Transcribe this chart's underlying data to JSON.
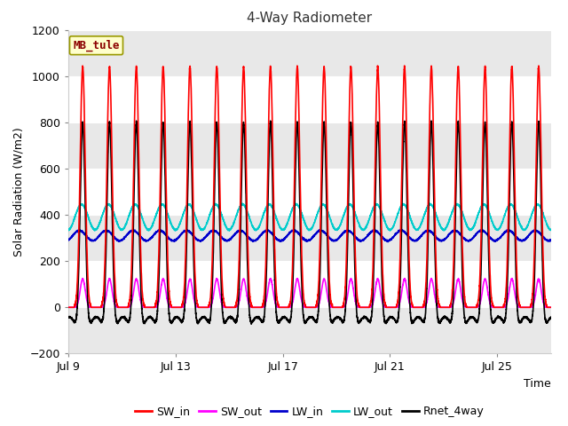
{
  "title": "4-Way Radiometer",
  "xlabel": "Time",
  "ylabel": "Solar Radiation (W/m2)",
  "ylim": [
    -200,
    1200
  ],
  "yticks": [
    -200,
    0,
    200,
    400,
    600,
    800,
    1000,
    1200
  ],
  "xtick_labels": [
    "Jul 9",
    "Jul 13",
    "Jul 17",
    "Jul 21",
    "Jul 25"
  ],
  "xtick_pos": [
    0,
    4,
    8,
    12,
    16
  ],
  "station_label": "MB_tule",
  "fig_bg": "#ffffff",
  "plot_bg": "#ffffff",
  "lines": {
    "SW_in": {
      "color": "#ff0000",
      "lw": 1.2
    },
    "SW_out": {
      "color": "#ff00ff",
      "lw": 1.2
    },
    "LW_in": {
      "color": "#0000cc",
      "lw": 1.2
    },
    "LW_out": {
      "color": "#00cccc",
      "lw": 1.2
    },
    "Rnet_4way": {
      "color": "#000000",
      "lw": 1.2
    }
  },
  "n_days": 18,
  "pts_per_day": 288,
  "SW_in_peak": 1040,
  "LW_in_base": 310,
  "LW_in_amp": 22,
  "LW_out_base": 390,
  "LW_out_amp": 55,
  "band_colors": [
    "#e8e8e8",
    "#ffffff"
  ]
}
